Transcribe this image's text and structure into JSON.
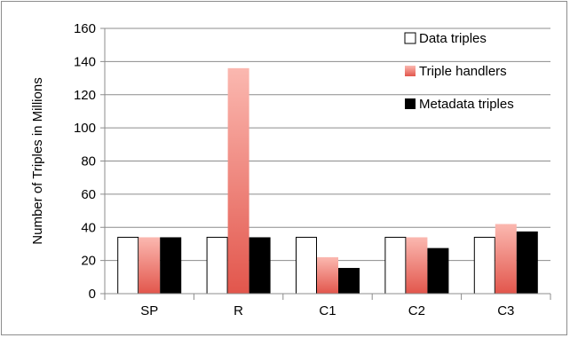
{
  "chart_data": {
    "type": "bar",
    "title": "",
    "xlabel": "",
    "ylabel": "Number of Triples in Millions",
    "ylim": [
      0,
      160
    ],
    "yticks": [
      0,
      20,
      40,
      60,
      80,
      100,
      120,
      140,
      160
    ],
    "grid": true,
    "legend_position": "top-right",
    "categories": [
      "SP",
      "R",
      "C1",
      "C2",
      "C3"
    ],
    "series": [
      {
        "name": "Data triples",
        "values": [
          34,
          34,
          34,
          34,
          34
        ],
        "color": "#ffffff",
        "stroke": "#000000"
      },
      {
        "name": "Triple handlers",
        "values": [
          34,
          136,
          22,
          34,
          42
        ],
        "color": "#e8645a",
        "color_light": "#fbb8b0"
      },
      {
        "name": "Metadata triples",
        "values": [
          34,
          34,
          15.5,
          27.5,
          37.5
        ],
        "color": "#000000"
      }
    ]
  }
}
